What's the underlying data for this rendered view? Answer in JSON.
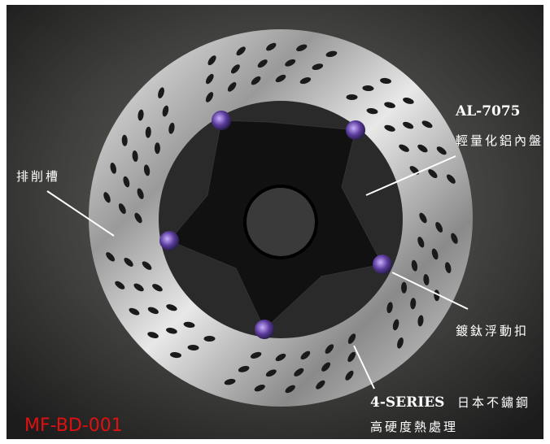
{
  "annotations": [
    {
      "title": "AL-7075",
      "text": "輕量化鋁內盤"
    },
    {
      "text": "排削槽"
    },
    {
      "text": "鍍鈦浮動扣"
    },
    {
      "title": "4-SERIES",
      "text": "日本不鏽鋼",
      "subtext": "高硬度熱處理"
    }
  ],
  "model": "MF-BD-001"
}
